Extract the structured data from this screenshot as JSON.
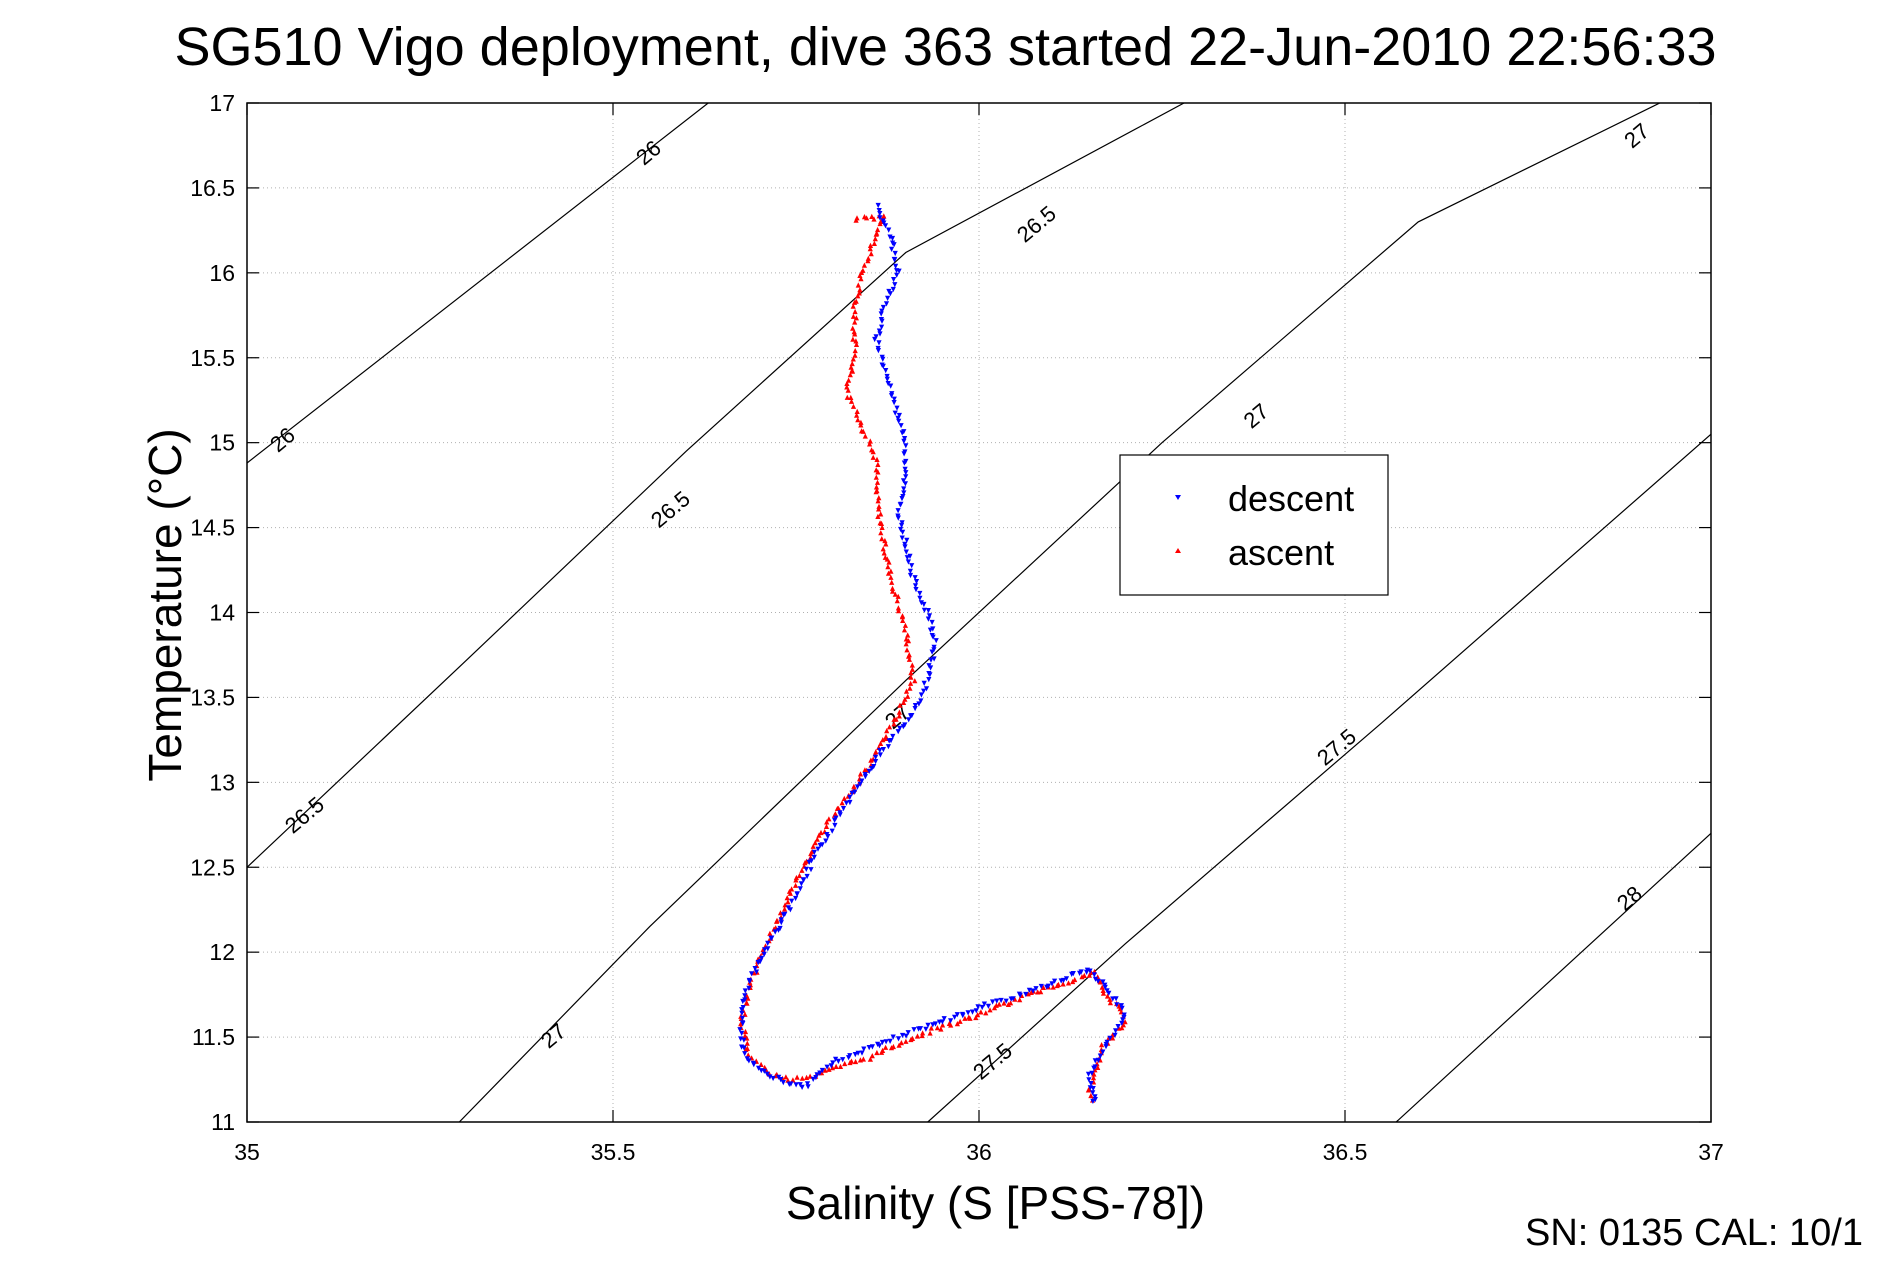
{
  "figure": {
    "title": "SG510 Vigo deployment, dive 363 started 22-Jun-2010 22:56:33",
    "footer": "SN: 0135  CAL: 10/1"
  },
  "chart_data": {
    "type": "scatter",
    "title": "SG510 Vigo deployment, dive 363 started 22-Jun-2010 22:56:33",
    "xlabel": "Salinity (S [PSS-78])",
    "ylabel": "Temperature (°C)",
    "xlim": [
      35,
      37
    ],
    "ylim": [
      11,
      17
    ],
    "xticks": [
      "35",
      "35.5",
      "36",
      "36.5",
      "37"
    ],
    "yticks": [
      "11",
      "11.5",
      "12",
      "12.5",
      "13",
      "13.5",
      "14",
      "14.5",
      "15",
      "15.5",
      "16",
      "16.5",
      "17"
    ],
    "grid": true,
    "legend_position": "right-center",
    "legend": [
      "descent",
      "ascent"
    ],
    "colors": {
      "descent": "#0000ff",
      "ascent": "#ff0000",
      "contour": "#000000"
    },
    "contours": [
      {
        "label": "26",
        "points": [
          [
            35.0,
            14.88
          ],
          [
            35.63,
            17.0
          ]
        ]
      },
      {
        "label": "26.5",
        "points": [
          [
            35.0,
            12.5
          ],
          [
            35.3,
            13.72
          ],
          [
            35.6,
            14.95
          ],
          [
            35.9,
            16.12
          ],
          [
            36.28,
            17.0
          ]
        ]
      },
      {
        "label": "27",
        "points": [
          [
            35.29,
            11.0
          ],
          [
            35.55,
            12.15
          ],
          [
            35.9,
            13.6
          ],
          [
            36.25,
            15.0
          ],
          [
            36.6,
            16.3
          ],
          [
            36.93,
            17.0
          ]
        ]
      },
      {
        "label": "27.5",
        "points": [
          [
            35.93,
            11.0
          ],
          [
            36.2,
            12.05
          ],
          [
            36.55,
            13.35
          ],
          [
            37.0,
            15.05
          ]
        ]
      },
      {
        "label": "28",
        "points": [
          [
            36.57,
            11.0
          ],
          [
            37.0,
            12.7
          ]
        ]
      }
    ],
    "contour_labels": [
      {
        "text": "26",
        "x": 35.55,
        "y": 16.7
      },
      {
        "text": "26",
        "x": 35.05,
        "y": 15.01
      },
      {
        "text": "26.5",
        "x": 35.08,
        "y": 12.8
      },
      {
        "text": "26.5",
        "x": 35.58,
        "y": 14.6
      },
      {
        "text": "26.5",
        "x": 36.08,
        "y": 16.28
      },
      {
        "text": "27",
        "x": 35.42,
        "y": 11.5
      },
      {
        "text": "27",
        "x": 35.89,
        "y": 13.38
      },
      {
        "text": "27",
        "x": 36.38,
        "y": 15.15
      },
      {
        "text": "27",
        "x": 36.9,
        "y": 16.8
      },
      {
        "text": "27.5",
        "x": 36.02,
        "y": 11.35
      },
      {
        "text": "27.5",
        "x": 36.49,
        "y": 13.2
      },
      {
        "text": "28",
        "x": 36.89,
        "y": 12.31
      }
    ],
    "series": [
      {
        "name": "descent",
        "marker": "triangle-down",
        "path": [
          [
            35.86,
            16.4
          ],
          [
            35.88,
            16.2
          ],
          [
            35.89,
            16.0
          ],
          [
            35.87,
            15.8
          ],
          [
            35.86,
            15.6
          ],
          [
            35.88,
            15.3
          ],
          [
            35.9,
            15.0
          ],
          [
            35.9,
            14.8
          ],
          [
            35.89,
            14.6
          ],
          [
            35.9,
            14.4
          ],
          [
            35.91,
            14.2
          ],
          [
            35.93,
            14.0
          ],
          [
            35.94,
            13.8
          ],
          [
            35.93,
            13.6
          ],
          [
            35.91,
            13.4
          ],
          [
            35.87,
            13.2
          ],
          [
            35.83,
            12.95
          ],
          [
            35.78,
            12.6
          ],
          [
            35.74,
            12.25
          ],
          [
            35.7,
            11.95
          ],
          [
            35.68,
            11.75
          ],
          [
            35.675,
            11.55
          ],
          [
            35.68,
            11.4
          ],
          [
            35.7,
            11.3
          ],
          [
            35.73,
            11.25
          ],
          [
            35.76,
            11.2
          ],
          [
            35.8,
            11.35
          ],
          [
            35.86,
            11.45
          ],
          [
            35.92,
            11.55
          ],
          [
            35.97,
            11.62
          ],
          [
            36.02,
            11.7
          ],
          [
            36.08,
            11.78
          ],
          [
            36.12,
            11.85
          ],
          [
            36.15,
            11.9
          ],
          [
            36.17,
            11.8
          ],
          [
            36.19,
            11.7
          ],
          [
            36.2,
            11.62
          ],
          [
            36.18,
            11.5
          ],
          [
            36.16,
            11.35
          ],
          [
            36.15,
            11.25
          ],
          [
            36.16,
            11.15
          ],
          [
            36.15,
            11.1
          ]
        ]
      },
      {
        "name": "ascent",
        "marker": "triangle-up",
        "path": [
          [
            35.83,
            16.32
          ],
          [
            35.87,
            16.33
          ],
          [
            35.84,
            16.0
          ],
          [
            35.83,
            15.8
          ],
          [
            35.83,
            15.5
          ],
          [
            35.82,
            15.3
          ],
          [
            35.86,
            14.9
          ],
          [
            35.86,
            14.7
          ],
          [
            35.87,
            14.4
          ],
          [
            35.88,
            14.2
          ],
          [
            35.9,
            13.9
          ],
          [
            35.91,
            13.6
          ],
          [
            35.89,
            13.4
          ],
          [
            35.85,
            13.1
          ],
          [
            35.8,
            12.8
          ],
          [
            35.76,
            12.5
          ],
          [
            35.72,
            12.15
          ],
          [
            35.69,
            11.85
          ],
          [
            35.675,
            11.6
          ],
          [
            35.685,
            11.4
          ],
          [
            35.71,
            11.3
          ],
          [
            35.74,
            11.25
          ],
          [
            35.78,
            11.28
          ],
          [
            35.85,
            11.38
          ],
          [
            35.92,
            11.52
          ],
          [
            35.98,
            11.6
          ],
          [
            36.05,
            11.72
          ],
          [
            36.1,
            11.8
          ],
          [
            36.16,
            11.88
          ],
          [
            36.17,
            11.75
          ],
          [
            36.19,
            11.68
          ],
          [
            36.2,
            11.6
          ],
          [
            36.17,
            11.45
          ],
          [
            36.16,
            11.3
          ],
          [
            36.15,
            11.18
          ],
          [
            36.16,
            11.12
          ]
        ]
      }
    ]
  }
}
